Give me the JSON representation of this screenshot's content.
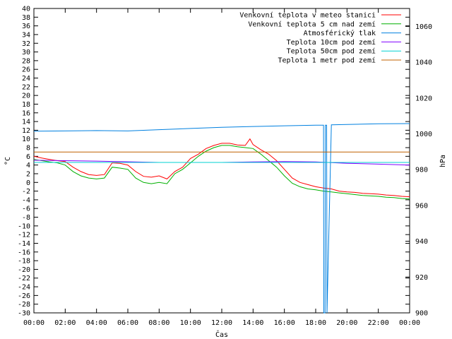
{
  "chart_data": {
    "type": "line",
    "title": "",
    "xlabel": "Čas",
    "ylabel": "°C",
    "y2label": "hPa",
    "xlim": [
      0,
      24
    ],
    "ylim": [
      -30,
      40
    ],
    "y2lim": [
      900,
      1070
    ],
    "grid": false,
    "legend_position": "top-right",
    "x_ticks": [
      "00:00",
      "02:00",
      "04:00",
      "06:00",
      "08:00",
      "10:00",
      "12:00",
      "14:00",
      "16:00",
      "18:00",
      "20:00",
      "22:00",
      "00:00"
    ],
    "y_ticks": [
      40,
      38,
      36,
      34,
      32,
      30,
      28,
      26,
      24,
      22,
      20,
      18,
      16,
      14,
      12,
      10,
      8,
      6,
      4,
      2,
      0,
      -2,
      -4,
      -6,
      -8,
      -10,
      -12,
      -14,
      -16,
      -18,
      -20,
      -22,
      -24,
      -26,
      -28,
      -30
    ],
    "y2_ticks": [
      1060,
      1040,
      1020,
      1000,
      980,
      960,
      940,
      920,
      900
    ],
    "series": [
      {
        "name": "Venkovní teplota v meteo stanici",
        "color": "#ff0000",
        "axis": "left",
        "x": [
          0,
          0.5,
          1,
          1.5,
          2,
          2.5,
          3,
          3.5,
          4,
          4.5,
          5,
          5.5,
          6,
          6.5,
          7,
          7.5,
          8,
          8.5,
          9,
          9.5,
          10,
          10.5,
          11,
          11.5,
          12,
          12.5,
          13,
          13.5,
          13.8,
          14,
          14.5,
          15,
          15.5,
          16,
          16.5,
          17,
          17.5,
          18,
          18.5,
          19,
          19.5,
          20,
          20.5,
          21,
          21.5,
          22,
          22.5,
          23,
          23.5,
          24
        ],
        "y": [
          6,
          5.6,
          5.3,
          5,
          4.8,
          3.5,
          2.5,
          1.8,
          1.6,
          1.8,
          4.5,
          4.4,
          4,
          2.5,
          1.4,
          1.2,
          1.5,
          0.8,
          2.5,
          3.5,
          5.5,
          6.5,
          7.8,
          8.5,
          9,
          9,
          8.6,
          8.5,
          10,
          8.7,
          7.5,
          6.5,
          5,
          3,
          1,
          0,
          -0.5,
          -1,
          -1.3,
          -1.5,
          -2,
          -2.2,
          -2.3,
          -2.5,
          -2.6,
          -2.7,
          -2.9,
          -3,
          -3.2,
          -3.3
        ]
      },
      {
        "name": "Venkovní teplota 5 cm nad zemí",
        "color": "#00b000",
        "axis": "left",
        "x": [
          0,
          0.5,
          1,
          1.5,
          2,
          2.5,
          3,
          3.5,
          4,
          4.5,
          5,
          5.5,
          6,
          6.5,
          7,
          7.5,
          8,
          8.5,
          9,
          9.5,
          10,
          10.5,
          11,
          11.5,
          12,
          12.5,
          13,
          13.5,
          14,
          14.5,
          15,
          15.5,
          16,
          16.5,
          17,
          17.5,
          18,
          18.5,
          19,
          19.5,
          20,
          20.5,
          21,
          21.5,
          22,
          22.5,
          23,
          23.5,
          24
        ],
        "y": [
          5.3,
          5,
          4.7,
          4.5,
          4,
          2.5,
          1.5,
          1,
          0.8,
          1,
          3.5,
          3.3,
          3,
          1,
          0,
          -0.3,
          0,
          -0.3,
          2,
          3,
          4.5,
          6,
          7.2,
          8,
          8.5,
          8.5,
          8.2,
          8,
          7.8,
          6.5,
          5,
          3.5,
          1.5,
          -0.2,
          -1,
          -1.5,
          -1.7,
          -2,
          -2.2,
          -2.4,
          -2.6,
          -2.8,
          -3,
          -3.1,
          -3.2,
          -3.4,
          -3.5,
          -3.7,
          -3.8
        ]
      },
      {
        "name": "Atmosférický tlak",
        "color": "#0080e0",
        "axis": "right",
        "x": [
          0,
          2,
          4,
          6,
          8,
          10,
          12,
          14,
          16,
          18,
          18.5,
          18.52,
          18.6,
          18.62,
          18.7,
          18.72,
          19,
          20,
          22,
          24
        ],
        "y": [
          1001.5,
          1001.6,
          1001.8,
          1001.6,
          1002.3,
          1003,
          1003.6,
          1004.1,
          1004.5,
          1004.8,
          1004.8,
          900,
          900,
          1004.8,
          1004.8,
          900,
          1005,
          1005.2,
          1005.6,
          1005.7
        ]
      },
      {
        "name": "Teplota 10cm pod zemí",
        "color": "#8000ff",
        "axis": "left",
        "x": [
          0,
          4,
          8,
          12,
          14,
          16,
          18,
          20,
          22,
          24
        ],
        "y": [
          5.1,
          4.9,
          4.6,
          4.6,
          4.7,
          4.8,
          4.7,
          4.4,
          4.2,
          4
        ]
      },
      {
        "name": "Teplota 50cm pod zemí",
        "color": "#00d0d0",
        "axis": "left",
        "x": [
          0,
          24
        ],
        "y": [
          4.6,
          4.6
        ]
      },
      {
        "name": "Teplota 1 metr pod zemí",
        "color": "#c06000",
        "axis": "left",
        "x": [
          0,
          24
        ],
        "y": [
          7,
          7
        ]
      }
    ]
  }
}
